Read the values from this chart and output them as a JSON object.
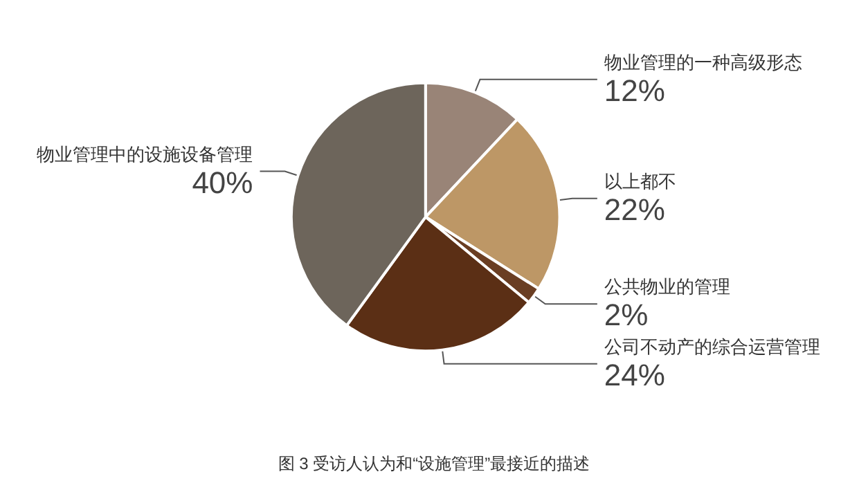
{
  "chart_data": {
    "type": "pie",
    "title": "图 3 受访人认为和“设施管理”最接近的描述",
    "categories": [
      "物业管理的一种高级形态",
      "以上都不",
      "公共物业的管理",
      "公司不动产的综合运营管理",
      "物业管理中的设施设备管理"
    ],
    "values": [
      12,
      22,
      2,
      24,
      40
    ],
    "colors": [
      "#998477",
      "#bd9766",
      "#6a3e23",
      "#5b2f15",
      "#6d655b"
    ],
    "value_labels": [
      "12%",
      "22%",
      "2%",
      "24%",
      "40%"
    ],
    "legend": false
  }
}
